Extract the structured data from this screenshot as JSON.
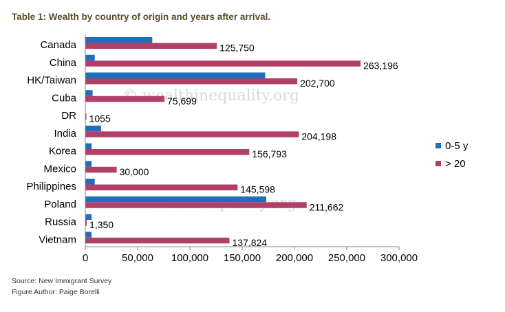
{
  "title": "Table 1: Wealth by country of origin and years after arrival.",
  "footer": {
    "source": "Source: New Immigrant Survey",
    "author": "Figure Author: Paige Borelli"
  },
  "watermark": "© wealthinequality.org",
  "chart_data": {
    "type": "bar",
    "orientation": "horizontal",
    "categories": [
      "Canada",
      "China",
      "HK/Taiwan",
      "Cuba",
      "DR",
      "India",
      "Korea",
      "Mexico",
      "Philippines",
      "Poland",
      "Russia",
      "Vietnam"
    ],
    "series": [
      {
        "name": "0-5 y",
        "color": "#1f6fba",
        "values": [
          64000,
          9000,
          172000,
          7000,
          0,
          15000,
          6000,
          6000,
          9000,
          173000,
          6000,
          6000
        ]
      },
      {
        "name": "> 20",
        "color": "#b0406a",
        "values": [
          125750,
          263196,
          202700,
          75699,
          1055,
          204198,
          156793,
          30000,
          145598,
          211662,
          1350,
          137824
        ]
      }
    ],
    "data_labels": [
      "125,750",
      "263,196",
      "202,700",
      "75,699",
      "1055",
      "204,198",
      "156,793",
      "30,000",
      "145,598",
      "211,662",
      "1,350",
      "137,824"
    ],
    "xlim": [
      0,
      300000
    ],
    "xticks": [
      0,
      50000,
      100000,
      150000,
      200000,
      250000,
      300000
    ],
    "xtick_labels": [
      "0",
      "50,000",
      "100,000",
      "150,000",
      "200,000",
      "250,000",
      "300,000"
    ],
    "legend_position": "right",
    "grid": false
  }
}
